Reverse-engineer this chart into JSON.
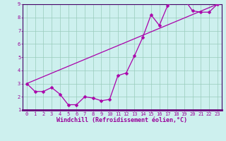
{
  "title": "",
  "xlabel": "Windchill (Refroidissement éolien,°C)",
  "ylabel": "",
  "bg_color": "#cdf0ee",
  "line_color": "#aa00aa",
  "grid_color": "#99ccbb",
  "axis_bar_color": "#440066",
  "xlim": [
    -0.5,
    23.5
  ],
  "ylim": [
    1,
    9
  ],
  "xticks": [
    0,
    1,
    2,
    3,
    4,
    5,
    6,
    7,
    8,
    9,
    10,
    11,
    12,
    13,
    14,
    15,
    16,
    17,
    18,
    19,
    20,
    21,
    22,
    23
  ],
  "yticks": [
    1,
    2,
    3,
    4,
    5,
    6,
    7,
    8,
    9
  ],
  "hours": [
    0,
    1,
    2,
    3,
    4,
    5,
    6,
    7,
    8,
    9,
    10,
    11,
    12,
    13,
    14,
    15,
    16,
    17,
    18,
    19,
    20,
    21,
    22,
    23
  ],
  "data_line": [
    3.0,
    2.4,
    2.4,
    2.7,
    2.2,
    1.4,
    1.4,
    2.0,
    1.9,
    1.7,
    1.8,
    3.6,
    3.8,
    5.1,
    6.5,
    8.2,
    7.4,
    8.9,
    9.3,
    9.4,
    8.5,
    8.4,
    8.4,
    9.0
  ],
  "trend_x": [
    0,
    23
  ],
  "trend_y": [
    3.0,
    9.0
  ],
  "marker_size": 2.5,
  "line_width": 0.9,
  "tick_fontsize": 5.0,
  "xlabel_fontsize": 6.0,
  "label_color": "#990099"
}
